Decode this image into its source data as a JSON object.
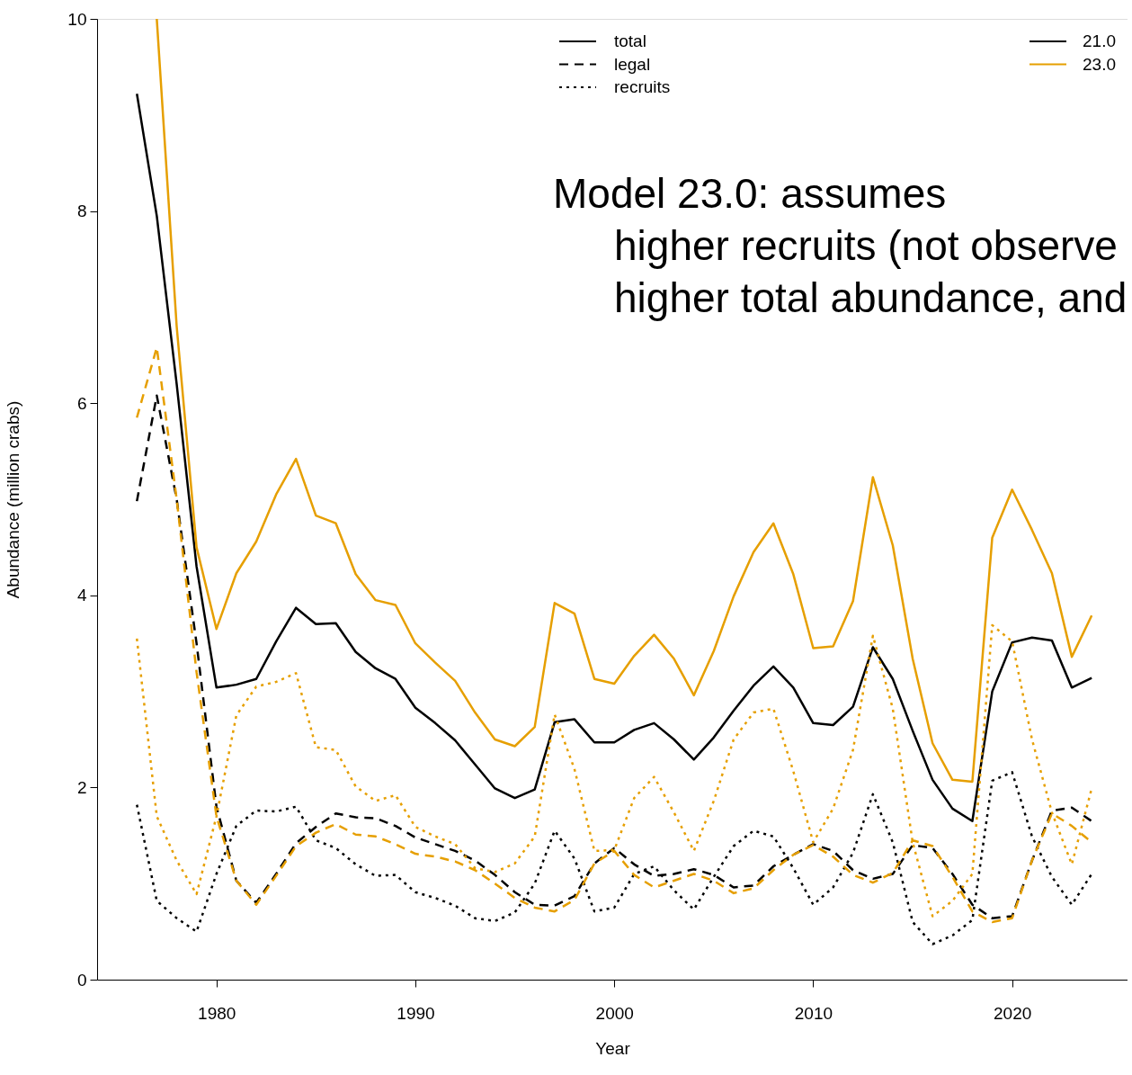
{
  "chart_data": {
    "type": "line",
    "xlabel": "Year",
    "ylabel": "Abundance (million crabs)",
    "x": [
      1976,
      1977,
      1978,
      1979,
      1980,
      1981,
      1982,
      1983,
      1984,
      1985,
      1986,
      1987,
      1988,
      1989,
      1990,
      1991,
      1992,
      1993,
      1994,
      1995,
      1996,
      1997,
      1998,
      1999,
      2000,
      2001,
      2002,
      2003,
      2004,
      2005,
      2006,
      2007,
      2008,
      2009,
      2010,
      2011,
      2012,
      2013,
      2014,
      2015,
      2016,
      2017,
      2018,
      2019,
      2020,
      2021,
      2022,
      2023,
      2024
    ],
    "xlim": [
      1974,
      2025.8
    ],
    "xticks": [
      1980,
      1990,
      2000,
      2010,
      2020
    ],
    "ylim": [
      0,
      10
    ],
    "yticks": [
      0,
      2,
      4,
      6,
      8,
      10
    ],
    "legend": "top right",
    "grid": false,
    "annotations": [
      "21.0",
      "23.0",
      "Model 23.0: assumes",
      "higher recruits (not observe",
      "higher total abundance, and"
    ],
    "series": [
      {
        "name": "total",
        "color": "#000000",
        "line_style": "solid",
        "values": [
          9.22,
          7.95,
          6.2,
          4.3,
          3.04,
          3.07,
          3.13,
          3.52,
          3.87,
          3.7,
          3.71,
          3.41,
          3.24,
          3.13,
          2.83,
          2.67,
          2.49,
          2.24,
          1.99,
          1.89,
          1.98,
          2.68,
          2.71,
          2.47,
          2.47,
          2.6,
          2.67,
          2.5,
          2.29,
          2.52,
          2.8,
          3.06,
          3.26,
          3.04,
          2.67,
          2.65,
          2.84,
          3.46,
          3.13,
          2.59,
          2.08,
          1.78,
          1.65,
          3.0,
          3.51,
          3.56,
          3.53,
          3.04,
          3.14
        ]
      },
      {
        "name": "legal",
        "color": "#000000",
        "line_style": "dashed",
        "values": [
          4.98,
          6.08,
          5.0,
          3.5,
          1.8,
          1.03,
          0.8,
          1.1,
          1.42,
          1.59,
          1.73,
          1.69,
          1.68,
          1.6,
          1.48,
          1.41,
          1.34,
          1.24,
          1.09,
          0.91,
          0.78,
          0.77,
          0.87,
          1.21,
          1.37,
          1.2,
          1.08,
          1.1,
          1.15,
          1.09,
          0.96,
          0.98,
          1.18,
          1.3,
          1.41,
          1.34,
          1.14,
          1.05,
          1.1,
          1.4,
          1.37,
          1.1,
          0.78,
          0.64,
          0.66,
          1.24,
          1.76,
          1.79,
          1.65
        ]
      },
      {
        "name": "recruits",
        "color": "#000000",
        "line_style": "dotted",
        "values": [
          1.82,
          0.82,
          0.64,
          0.5,
          1.1,
          1.6,
          1.76,
          1.75,
          1.8,
          1.45,
          1.37,
          1.2,
          1.08,
          1.09,
          0.91,
          0.85,
          0.77,
          0.64,
          0.61,
          0.7,
          1.0,
          1.55,
          1.26,
          0.71,
          0.75,
          1.1,
          1.18,
          0.93,
          0.73,
          1.07,
          1.39,
          1.55,
          1.49,
          1.16,
          0.78,
          0.96,
          1.32,
          1.93,
          1.43,
          0.6,
          0.37,
          0.46,
          0.62,
          2.07,
          2.16,
          1.49,
          1.07,
          0.78,
          1.1
        ]
      },
      {
        "color": "#e69f00",
        "line_style": "solid",
        "values": [
          null,
          10.0,
          6.8,
          4.5,
          3.65,
          4.23,
          4.56,
          5.05,
          5.42,
          4.83,
          4.75,
          4.22,
          3.95,
          3.9,
          3.5,
          3.3,
          3.11,
          2.78,
          2.5,
          2.43,
          2.63,
          3.92,
          3.81,
          3.13,
          3.08,
          3.37,
          3.59,
          3.34,
          2.96,
          3.42,
          3.99,
          4.45,
          4.75,
          4.22,
          3.45,
          3.47,
          3.94,
          5.23,
          4.52,
          3.34,
          2.46,
          2.08,
          2.06,
          4.6,
          5.1,
          4.68,
          4.23,
          3.36,
          3.79
        ]
      },
      {
        "color": "#e69f00",
        "line_style": "dashed",
        "values": [
          5.85,
          6.58,
          5.0,
          3.2,
          1.7,
          1.03,
          0.78,
          1.08,
          1.39,
          1.53,
          1.62,
          1.51,
          1.49,
          1.41,
          1.31,
          1.28,
          1.23,
          1.14,
          1.0,
          0.85,
          0.75,
          0.71,
          0.83,
          1.21,
          1.34,
          1.09,
          0.96,
          1.03,
          1.1,
          1.03,
          0.9,
          0.95,
          1.14,
          1.3,
          1.4,
          1.28,
          1.09,
          1.01,
          1.11,
          1.45,
          1.39,
          1.07,
          0.71,
          0.6,
          0.64,
          1.24,
          1.73,
          1.6,
          1.43
        ]
      },
      {
        "color": "#e69f00",
        "line_style": "dotted",
        "values": [
          3.55,
          1.7,
          1.24,
          0.89,
          1.7,
          2.75,
          3.05,
          3.1,
          3.19,
          2.42,
          2.39,
          2.01,
          1.86,
          1.92,
          1.59,
          1.49,
          1.41,
          1.16,
          1.12,
          1.21,
          1.49,
          2.76,
          2.19,
          1.34,
          1.35,
          1.89,
          2.11,
          1.74,
          1.34,
          1.86,
          2.5,
          2.78,
          2.82,
          2.17,
          1.43,
          1.78,
          2.39,
          3.58,
          2.82,
          1.43,
          0.66,
          0.82,
          1.1,
          3.69,
          3.52,
          2.5,
          1.74,
          1.2,
          1.99
        ]
      }
    ]
  }
}
